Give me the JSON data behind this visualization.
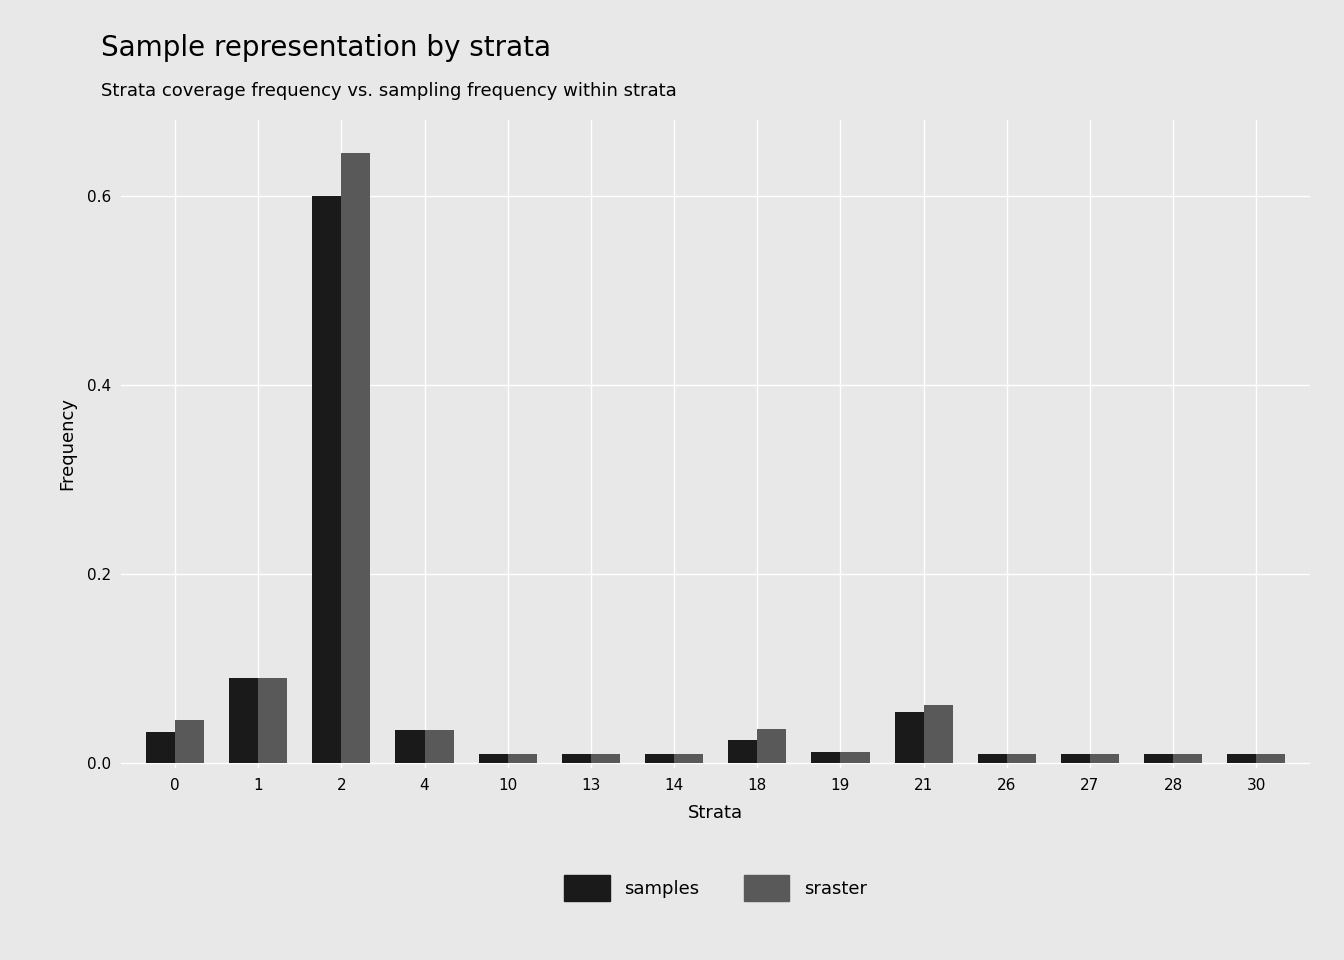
{
  "title": "Sample representation by strata",
  "subtitle": "Strata coverage frequency vs. sampling frequency within strata",
  "xlabel": "Strata",
  "ylabel": "Frequency",
  "background_color": "#E8E8E8",
  "categories": [
    "0",
    "1",
    "2",
    "4",
    "10",
    "13",
    "14",
    "18",
    "19",
    "21",
    "26",
    "27",
    "28",
    "30"
  ],
  "samples": [
    0.033,
    0.09,
    0.6,
    0.035,
    0.01,
    0.01,
    0.01,
    0.025,
    0.012,
    0.054,
    0.01,
    0.01,
    0.01,
    0.01
  ],
  "sraster": [
    0.046,
    0.09,
    0.645,
    0.035,
    0.01,
    0.01,
    0.01,
    0.036,
    0.012,
    0.062,
    0.01,
    0.01,
    0.01,
    0.01
  ],
  "color_samples": "#1a1a1a",
  "color_sraster": "#595959",
  "ylim": [
    -0.005,
    0.68
  ],
  "yticks": [
    0.0,
    0.2,
    0.4,
    0.6
  ],
  "ytick_labels": [
    "0.0",
    "0.2",
    "0.4",
    "0.6"
  ],
  "legend_labels": [
    "samples",
    "sraster"
  ],
  "title_fontsize": 20,
  "subtitle_fontsize": 13,
  "axis_label_fontsize": 13,
  "tick_fontsize": 11,
  "legend_fontsize": 13,
  "bar_width": 0.35,
  "grid_color": "#ffffff",
  "grid_linewidth": 1.0
}
